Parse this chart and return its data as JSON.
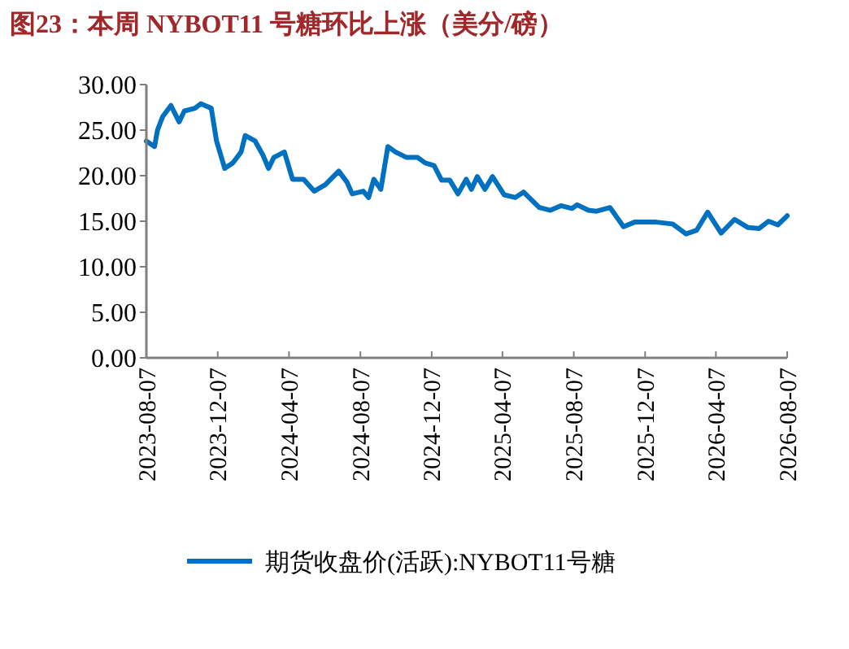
{
  "chart_data": {
    "type": "line",
    "title": "图23：本周 NYBOT11 号糖环比上涨（美分/磅）",
    "x": [
      "2023-08-07",
      "2023-08-21",
      "2023-08-26",
      "2023-09-04",
      "2023-09-18",
      "2023-10-02",
      "2023-10-11",
      "2023-10-29",
      "2023-11-08",
      "2023-11-26",
      "2023-12-05",
      "2023-12-19",
      "2024-01-02",
      "2024-01-16",
      "2024-01-23",
      "2024-02-09",
      "2024-02-22",
      "2024-03-03",
      "2024-03-12",
      "2024-03-30",
      "2024-04-13",
      "2024-05-02",
      "2024-05-20",
      "2024-06-08",
      "2024-07-01",
      "2024-07-15",
      "2024-07-24",
      "2024-08-12",
      "2024-08-21",
      "2024-08-30",
      "2024-09-11",
      "2024-09-23",
      "2024-10-06",
      "2024-10-25",
      "2024-11-13",
      "2024-11-26",
      "2024-12-11",
      "2024-12-24",
      "2025-01-07",
      "2025-01-21",
      "2025-02-04",
      "2025-02-13",
      "2025-02-23",
      "2025-03-08",
      "2025-03-21",
      "2025-04-10",
      "2025-04-29",
      "2025-05-13",
      "2025-06-09",
      "2025-06-28",
      "2025-07-16",
      "2025-08-04",
      "2025-08-13",
      "2025-09-01",
      "2025-09-15",
      "2025-10-08",
      "2025-10-31",
      "2025-11-19",
      "2025-12-26",
      "2026-01-23",
      "2026-02-15",
      "2026-03-05",
      "2026-03-24",
      "2026-04-16",
      "2026-05-09",
      "2026-06-01",
      "2026-06-20",
      "2026-07-06",
      "2026-07-22",
      "2026-08-07"
    ],
    "series": [
      {
        "name": "期货收盘价(活跃):NYBOT11号糖",
        "color": "#0070c0",
        "values": [
          23.8,
          23.2,
          25.0,
          26.5,
          27.7,
          25.9,
          27.1,
          27.4,
          27.9,
          27.4,
          23.8,
          20.8,
          21.4,
          22.6,
          24.4,
          23.8,
          22.3,
          20.8,
          22.0,
          22.6,
          19.6,
          19.6,
          18.3,
          19.0,
          20.5,
          19.3,
          18.0,
          18.3,
          17.6,
          19.6,
          18.5,
          23.2,
          22.6,
          22.0,
          22.0,
          21.4,
          21.1,
          19.5,
          19.5,
          18.0,
          19.6,
          18.5,
          19.9,
          18.5,
          19.9,
          17.9,
          17.6,
          18.2,
          16.5,
          16.2,
          16.7,
          16.4,
          16.8,
          16.2,
          16.1,
          16.5,
          14.4,
          14.9,
          14.9,
          14.7,
          13.6,
          14.0,
          16.0,
          13.7,
          15.2,
          14.3,
          14.2,
          15.0,
          14.6,
          15.6
        ]
      }
    ],
    "xlim": [
      "2023-08-07",
      "2026-08-07"
    ],
    "xticks": [
      "2023-08-07",
      "2023-12-07",
      "2024-04-07",
      "2024-08-07",
      "2024-12-07",
      "2025-04-07",
      "2025-08-07",
      "2025-12-07",
      "2026-04-07",
      "2026-08-07"
    ],
    "ylim": [
      0,
      30
    ],
    "yticks": [
      {
        "value": 0,
        "label": "0.00"
      },
      {
        "value": 5,
        "label": "5.00"
      },
      {
        "value": 10,
        "label": "10.00"
      },
      {
        "value": 15,
        "label": "15.00"
      },
      {
        "value": 20,
        "label": "20.00"
      },
      {
        "value": 25,
        "label": "25.00"
      },
      {
        "value": 30,
        "label": "30.00"
      }
    ],
    "legend": "bottom",
    "line_style": "solid",
    "marker": "none"
  }
}
